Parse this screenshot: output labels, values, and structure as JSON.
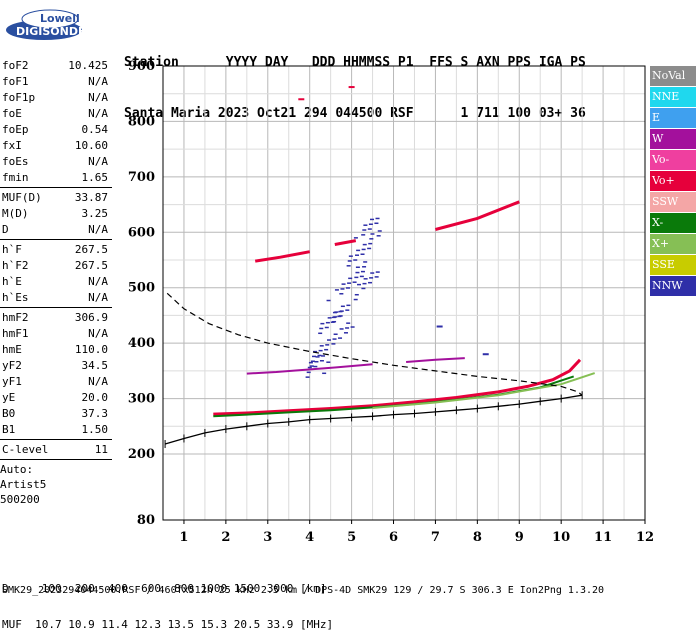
{
  "logo": {
    "line1": "Lowell",
    "line2": "DIGISONDE"
  },
  "header": {
    "line1": "Station      YYYY DAY   DDD HHMMSS P1  FFS S AXN PPS IGA PS",
    "line2": "Santa Maria 2023 Oct21 294 044500 RSF      1 711 100 03+ 36"
  },
  "params": {
    "group1": [
      {
        "k": "foF2",
        "v": "10.425"
      },
      {
        "k": "foF1",
        "v": "N/A"
      },
      {
        "k": "foF1p",
        "v": "N/A"
      },
      {
        "k": "foE",
        "v": "N/A"
      },
      {
        "k": "foEp",
        "v": "0.54"
      },
      {
        "k": "fxI",
        "v": "10.60"
      },
      {
        "k": "foEs",
        "v": "N/A"
      },
      {
        "k": "fmin",
        "v": "1.65"
      }
    ],
    "group2": [
      {
        "k": "MUF(D)",
        "v": "33.87"
      },
      {
        "k": "M(D)",
        "v": "3.25"
      },
      {
        "k": "D",
        "v": "N/A"
      }
    ],
    "group3": [
      {
        "k": "h`F",
        "v": "267.5"
      },
      {
        "k": "h`F2",
        "v": "267.5"
      },
      {
        "k": "h`E",
        "v": "N/A"
      },
      {
        "k": "h`Es",
        "v": "N/A"
      }
    ],
    "group4": [
      {
        "k": "hmF2",
        "v": "306.9"
      },
      {
        "k": "hmF1",
        "v": "N/A"
      },
      {
        "k": "hmE",
        "v": "110.0"
      },
      {
        "k": "yF2",
        "v": "34.5"
      },
      {
        "k": "yF1",
        "v": "N/A"
      },
      {
        "k": "yE",
        "v": "20.0"
      },
      {
        "k": "B0",
        "v": "37.3"
      },
      {
        "k": "B1",
        "v": "1.50"
      }
    ],
    "group5": [
      {
        "k": "C-level",
        "v": "11"
      }
    ],
    "auto": [
      "Auto:",
      "Artist5",
      "500200"
    ]
  },
  "legend": [
    {
      "label": "NoVal",
      "color": "#8c8c8c"
    },
    {
      "label": "NNE",
      "color": "#1fd8ee"
    },
    {
      "label": "E",
      "color": "#3fa0ef"
    },
    {
      "label": "W",
      "color": "#a3109c"
    },
    {
      "label": "Vo-",
      "color": "#ef3f9f"
    },
    {
      "label": "Vo+",
      "color": "#e6003b"
    },
    {
      "label": "SSW",
      "color": "#f4a6a6"
    },
    {
      "label": "X-",
      "color": "#0a7a0a"
    },
    {
      "label": "X+",
      "color": "#86bf55"
    },
    {
      "label": "SSE",
      "color": "#c8cc00"
    },
    {
      "label": "NNW",
      "color": "#2f2fa8"
    }
  ],
  "footer": {
    "line1": "D     100  200  400  600  800 1000 1500 3000 [km]",
    "line2": "MUF  10.7 10.9 11.4 12.3 13.5 15.3 20.5 33.9 [MHz]",
    "line3": "SMK29_2023294044500.RSF / 460fx512h 25 kHz 2.5 km / DPS-4D SMK29 129 / 29.7 S 306.3 E Ion2Png 1.3.20"
  },
  "chart_data": {
    "type": "scatter",
    "xlim": [
      0.5,
      12
    ],
    "ylim": [
      80,
      900
    ],
    "xticks": [
      1,
      2,
      3,
      4,
      5,
      6,
      7,
      8,
      9,
      10,
      11,
      12
    ],
    "yticks": [
      80,
      200,
      300,
      400,
      500,
      600,
      700,
      800,
      900
    ],
    "grid": true,
    "legend_placement": "right",
    "series": [
      {
        "name": "Vo+",
        "color": "#e6003b",
        "traces": [
          {
            "x": [
              1.7,
              2.5,
              3.5,
              4.5,
              5.5,
              6.5,
              7.5,
              8.5,
              9.2,
              9.8,
              10.2,
              10.45
            ],
            "y": [
              272,
              274,
              278,
              282,
              287,
              294,
              302,
              312,
              322,
              334,
              350,
              370
            ]
          },
          {
            "x": [
              2.7,
              3.3,
              4.0
            ],
            "y": [
              548,
              555,
              565
            ]
          },
          {
            "x": [
              4.6,
              5.1
            ],
            "y": [
              578,
              585
            ]
          },
          {
            "x": [
              7.0,
              8.0,
              9.0
            ],
            "y": [
              605,
              625,
              655
            ]
          },
          {
            "x": [
              3.8
            ],
            "y": [
              840
            ]
          },
          {
            "x": [
              5.0
            ],
            "y": [
              862
            ]
          }
        ]
      },
      {
        "name": "X-",
        "color": "#0a7a0a",
        "traces": [
          {
            "x": [
              1.7,
              2.5,
              3.5,
              4.5,
              5.5,
              6.5,
              7.5,
              8.5,
              9.5,
              10.3
            ],
            "y": [
              268,
              271,
              275,
              279,
              284,
              290,
              298,
              307,
              320,
              340
            ]
          }
        ]
      },
      {
        "name": "X+",
        "color": "#86bf55",
        "traces": [
          {
            "x": [
              5.5,
              7.0,
              8.5,
              10.0,
              10.8
            ],
            "y": [
              283,
              293,
              306,
              326,
              346
            ]
          }
        ]
      },
      {
        "name": "W",
        "color": "#a3109c",
        "traces": [
          {
            "x": [
              2.5,
              3.2,
              3.9,
              4.6,
              5.5
            ],
            "y": [
              345,
              348,
              352,
              356,
              362
            ]
          },
          {
            "x": [
              6.3,
              7.0,
              7.7
            ],
            "y": [
              366,
              370,
              373
            ]
          }
        ]
      },
      {
        "name": "NNW",
        "color": "#2f2fa8",
        "traces": [
          {
            "x": [
              4.3,
              4.5,
              4.7,
              4.9,
              5.1,
              5.3,
              5.5
            ],
            "y": [
              380,
              420,
              460,
              500,
              540,
              580,
              615
            ]
          },
          {
            "x": [
              4.2,
              4.8,
              5.4
            ],
            "y": [
              360,
              440,
              520
            ]
          },
          {
            "x": [
              7.1
            ],
            "y": [
              430
            ]
          },
          {
            "x": [
              8.2
            ],
            "y": [
              380
            ]
          }
        ]
      },
      {
        "name": "Profile",
        "color": "#000000",
        "traces": [
          {
            "x": [
              0.55,
              1.0,
              1.5,
              2.0,
              2.5,
              3.0,
              3.5,
              4.0,
              4.5,
              5.0,
              5.5,
              6.0,
              6.5,
              7.0,
              7.5,
              8.0,
              8.5,
              9.0,
              9.5,
              10.0,
              10.5
            ],
            "y": [
              218,
              228,
              238,
              245,
              250,
              255,
              258,
              262,
              264,
              266,
              268,
              271,
              273,
              276,
              279,
              282,
              286,
              290,
              295,
              300,
              306
            ]
          }
        ]
      },
      {
        "name": "Topside",
        "color": "#000000",
        "traces": [
          {
            "x": [
              0.6,
              1.0,
              1.6,
              2.3,
              3.0,
              4.0,
              5.0,
              6.0,
              7.0,
              8.0,
              9.0,
              10.0,
              10.4,
              10.5
            ],
            "y": [
              490,
              462,
              435,
              415,
              400,
              385,
              372,
              360,
              350,
              340,
              332,
              322,
              312,
              306
            ]
          }
        ]
      }
    ]
  }
}
